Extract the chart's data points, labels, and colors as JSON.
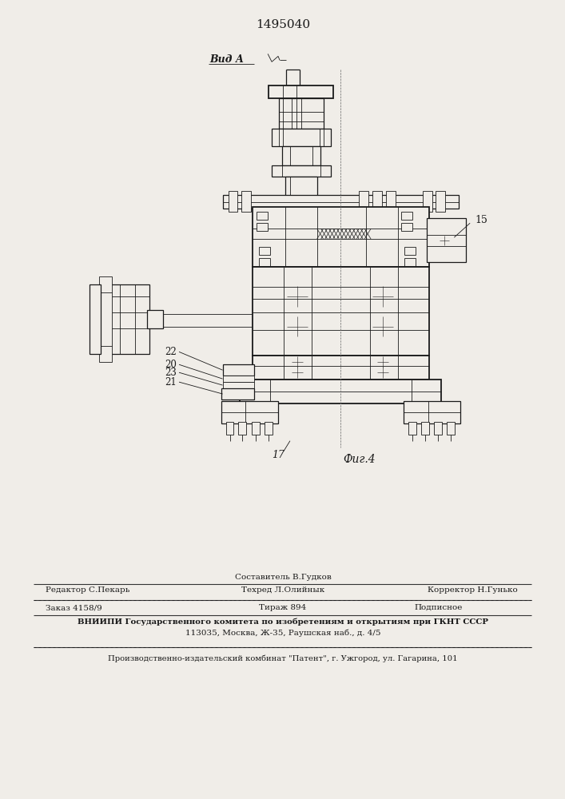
{
  "patent_number": "1495040",
  "view_label": "Вид А",
  "fig_label": "Фиг.4",
  "bg_color": "#f0ede8",
  "line_color": "#1a1a1a",
  "footer": {
    "line1": "Составитель В.Гудков",
    "line2_left": "Редактор С.Пекарь",
    "line2_mid": "Техред Л.Олийнык",
    "line2_right": "Корректор Н.Гунько",
    "line3_left": "Заказ 4158/9",
    "line3_mid": "Тираж 894",
    "line3_right": "Подписное",
    "line4": "ВНИИПИ Государственного комитета по изобретениям и открытиям при ГКНТ СССР",
    "line5": "113035, Москва, Ж-35, Раушская наб., д. 4/5",
    "line6": "Производственно-издательский комбинат \"Патент\", г. Ужгород, ул. Гагарина, 101"
  }
}
